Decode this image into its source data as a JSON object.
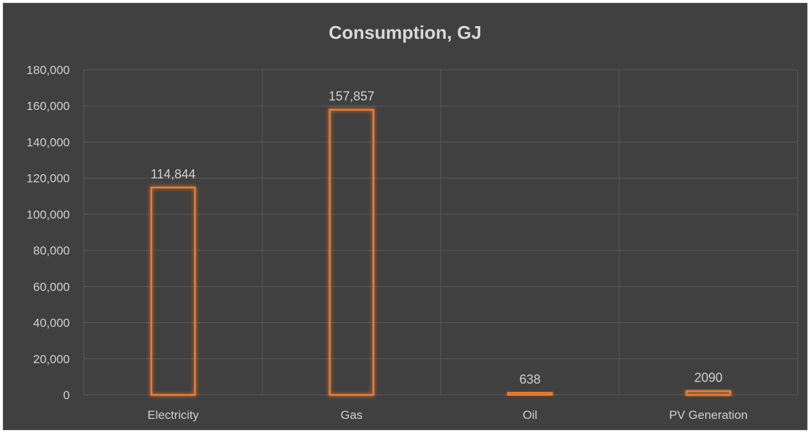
{
  "chart_data": {
    "type": "bar",
    "title": "Consumption, GJ",
    "categories": [
      "Electricity",
      "Gas",
      "Oil",
      "PV Generation"
    ],
    "values": [
      114844,
      157857,
      638,
      2090
    ],
    "data_labels": [
      "114,844",
      "157,857",
      "638",
      "2090"
    ],
    "y_ticks": [
      "0",
      "20,000",
      "40,000",
      "60,000",
      "80,000",
      "100,000",
      "120,000",
      "140,000",
      "160,000",
      "180,000"
    ],
    "ylim": [
      0,
      180000
    ],
    "grid": true,
    "legend": "none",
    "bar_style": "outlined with glow"
  },
  "colors": {
    "background": "#404040",
    "bar": "#ed7d31",
    "grid": "#595959",
    "text": "#d9d9d9"
  }
}
